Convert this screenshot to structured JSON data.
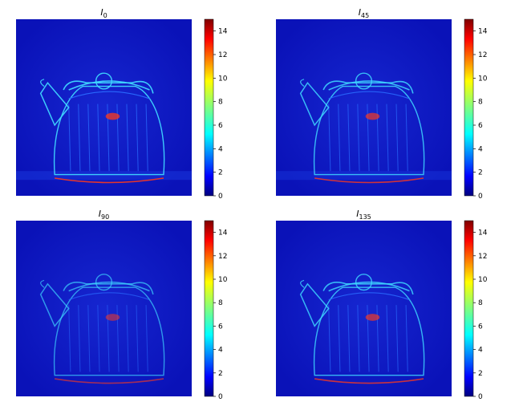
{
  "chart_data": [
    {
      "type": "heatmap",
      "title_base": "I",
      "title_sub": "0",
      "colormap": "jet",
      "vmin": 0,
      "vmax": 14,
      "colorbar_ticks": [
        "0",
        "2",
        "4",
        "6",
        "8",
        "10",
        "12",
        "14"
      ],
      "legend": "colorbar-right",
      "image": "kettle-edge-map"
    },
    {
      "type": "heatmap",
      "title_base": "I",
      "title_sub": "45",
      "colormap": "jet",
      "vmin": 0,
      "vmax": 14,
      "colorbar_ticks": [
        "0",
        "2",
        "4",
        "6",
        "8",
        "10",
        "12",
        "14"
      ],
      "legend": "colorbar-right",
      "image": "kettle-edge-map"
    },
    {
      "type": "heatmap",
      "title_base": "I",
      "title_sub": "90",
      "colormap": "jet",
      "vmin": 0,
      "vmax": 14,
      "colorbar_ticks": [
        "0",
        "2",
        "4",
        "6",
        "8",
        "10",
        "12",
        "14"
      ],
      "legend": "colorbar-right",
      "image": "kettle-edge-map"
    },
    {
      "type": "heatmap",
      "title_base": "I",
      "title_sub": "135",
      "colormap": "jet",
      "vmin": 0,
      "vmax": 14,
      "colorbar_ticks": [
        "0",
        "2",
        "4",
        "6",
        "8",
        "10",
        "12",
        "14"
      ],
      "legend": "colorbar-right",
      "image": "kettle-edge-map"
    }
  ],
  "colors": {
    "background": "#0a12b8",
    "edge_low": "#2a6cff",
    "edge_mid": "#3fd6ff",
    "edge_high": "#ff3a1a"
  }
}
